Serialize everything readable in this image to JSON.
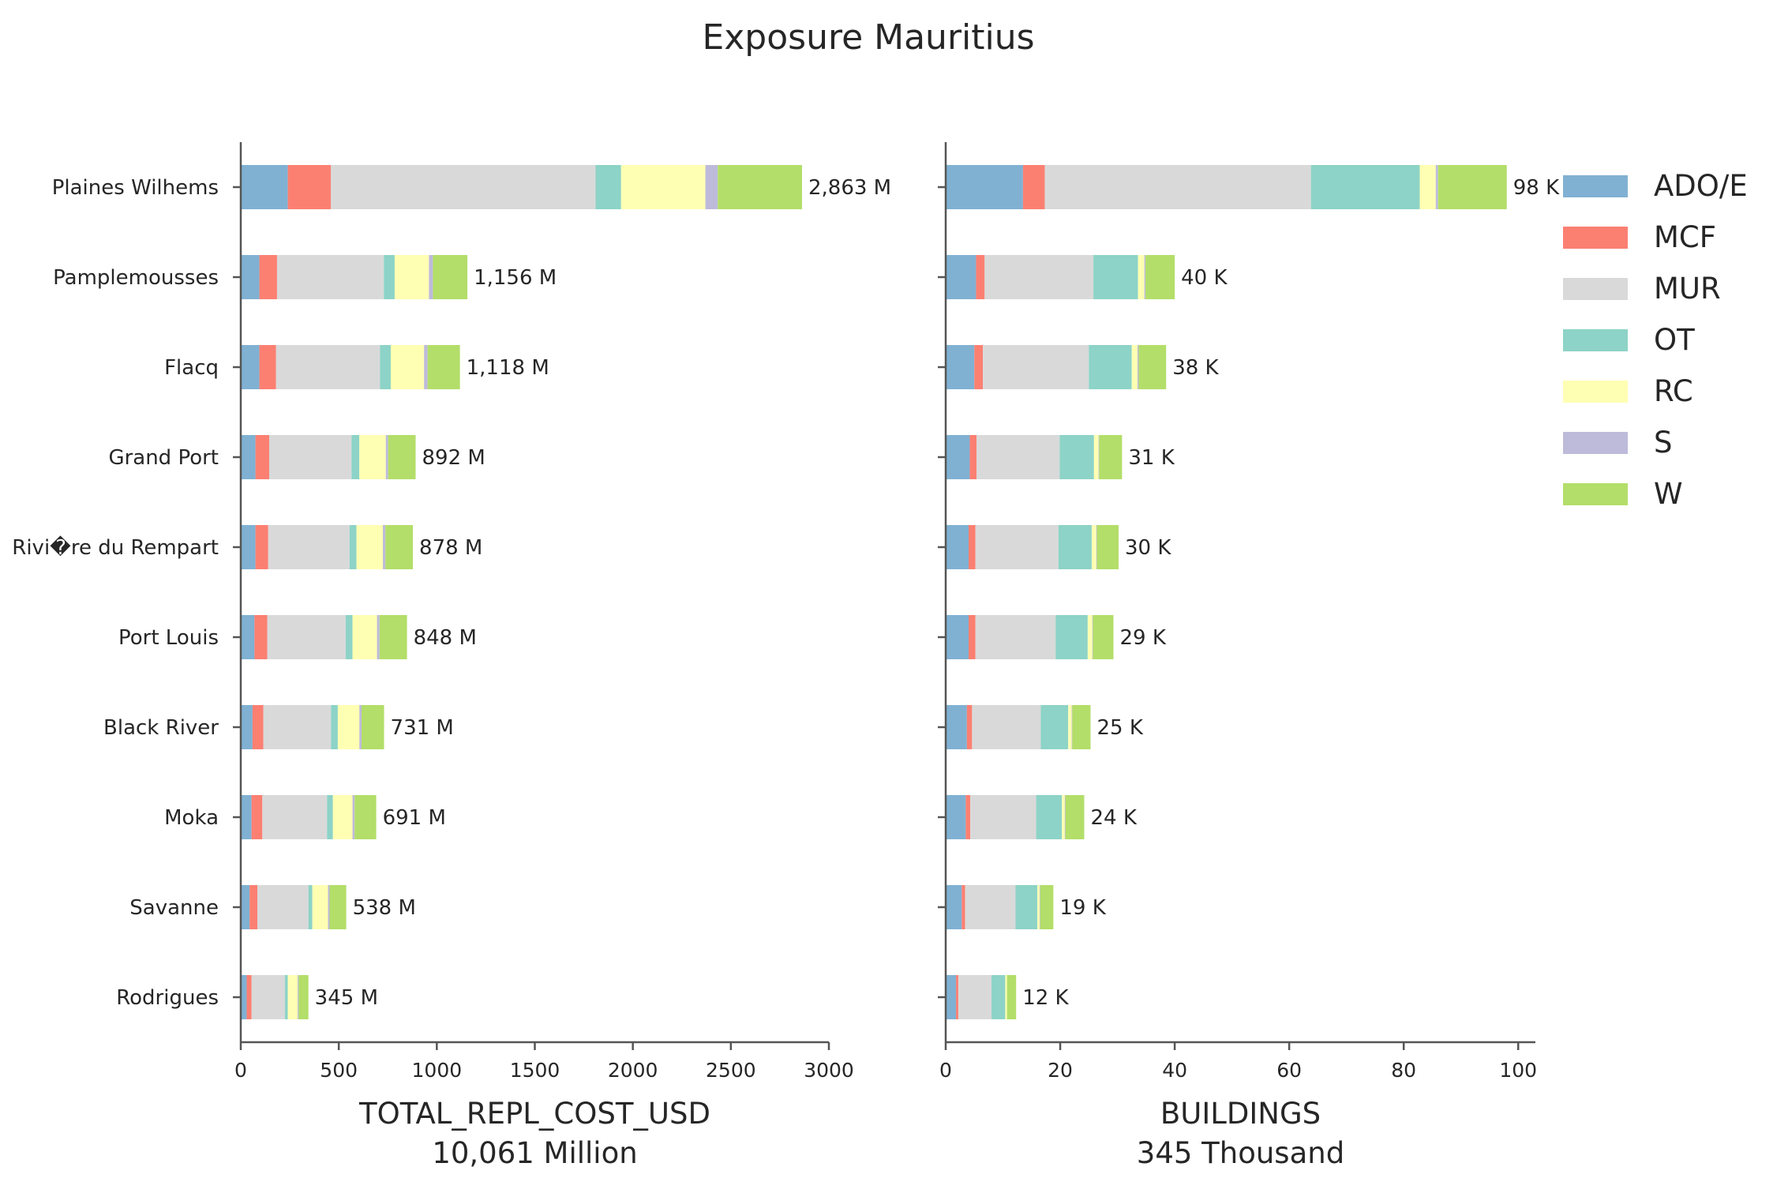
{
  "title": "Exposure Mauritius",
  "series_names": [
    "ADO/E",
    "MCF",
    "MUR",
    "OT",
    "RC",
    "S",
    "W"
  ],
  "colors": {
    "ADO/E": "#80b1d3",
    "MCF": "#fb8072",
    "MUR": "#d9d9d9",
    "OT": "#8dd3c7",
    "RC": "#ffffb3",
    "S": "#bebada",
    "W": "#b3de69",
    "axis": "#555555",
    "text": "#262626"
  },
  "legend": {
    "placement": "right",
    "items": [
      "ADO/E",
      "MCF",
      "MUR",
      "OT",
      "RC",
      "S",
      "W"
    ]
  },
  "chart_data": [
    {
      "type": "bar",
      "orientation": "horizontal",
      "stacked": true,
      "categories": [
        "Plaines Wilhems",
        "Pamplemousses",
        "Flacq",
        "Grand Port",
        "Rivi�re du Rempart",
        "Port Louis",
        "Black River",
        "Moka",
        "Savanne",
        "Rodrigues"
      ],
      "series": [
        {
          "name": "ADO/E",
          "values": [
            240,
            95,
            95,
            75,
            75,
            70,
            60,
            55,
            45,
            30
          ]
        },
        {
          "name": "MCF",
          "values": [
            220,
            90,
            85,
            70,
            65,
            65,
            55,
            55,
            40,
            25
          ]
        },
        {
          "name": "MUR",
          "values": [
            1350,
            545,
            530,
            420,
            415,
            400,
            345,
            330,
            260,
            170
          ]
        },
        {
          "name": "OT",
          "values": [
            130,
            55,
            55,
            40,
            35,
            35,
            35,
            30,
            20,
            15
          ]
        },
        {
          "name": "RC",
          "values": [
            430,
            175,
            170,
            135,
            135,
            125,
            110,
            100,
            80,
            50
          ]
        },
        {
          "name": "S",
          "values": [
            63,
            20,
            18,
            12,
            13,
            13,
            11,
            11,
            8,
            5
          ]
        },
        {
          "name": "W",
          "values": [
            430,
            176,
            165,
            140,
            140,
            140,
            115,
            110,
            85,
            50
          ]
        }
      ],
      "totals_text": [
        "2,863 M",
        "1,156 M",
        "1,118 M",
        "892 M",
        "878 M",
        "848 M",
        "731 M",
        "691 M",
        "538 M",
        "345 M"
      ],
      "xlim": [
        0,
        3000
      ],
      "xticks": [
        0,
        500,
        1000,
        1500,
        2000,
        2500,
        3000
      ],
      "xlabel": "TOTAL_REPL_COST_USD",
      "xlabel_sub": "10,061 Million"
    },
    {
      "type": "bar",
      "orientation": "horizontal",
      "stacked": true,
      "categories": [
        "Plaines Wilhems",
        "Pamplemousses",
        "Flacq",
        "Grand Port",
        "Rivi�re du Rempart",
        "Port Louis",
        "Black River",
        "Moka",
        "Savanne",
        "Rodrigues"
      ],
      "series": [
        {
          "name": "ADO/E",
          "values": [
            13.5,
            5.3,
            5.0,
            4.2,
            4.0,
            4.0,
            3.7,
            3.5,
            2.8,
            1.8
          ]
        },
        {
          "name": "MCF",
          "values": [
            3.8,
            1.5,
            1.5,
            1.2,
            1.2,
            1.2,
            0.9,
            0.8,
            0.6,
            0.4
          ]
        },
        {
          "name": "MUR",
          "values": [
            46.5,
            19.0,
            18.5,
            14.5,
            14.5,
            14.0,
            12.0,
            11.5,
            8.8,
            5.8
          ]
        },
        {
          "name": "OT",
          "values": [
            19.0,
            7.8,
            7.5,
            6.0,
            5.8,
            5.6,
            4.8,
            4.5,
            3.8,
            2.4
          ]
        },
        {
          "name": "RC",
          "values": [
            2.8,
            1.1,
            1.0,
            0.8,
            0.8,
            0.8,
            0.6,
            0.5,
            0.4,
            0.3
          ]
        },
        {
          "name": "S",
          "values": [
            0.4,
            0.2,
            0.2,
            0.1,
            0.1,
            0.1,
            0.1,
            0.1,
            0.1,
            0.0
          ]
        },
        {
          "name": "W",
          "values": [
            12.0,
            5.1,
            4.8,
            4.0,
            3.8,
            3.6,
            3.2,
            3.3,
            2.3,
            1.6
          ]
        }
      ],
      "totals_text": [
        "98 K",
        "40 K",
        "38 K",
        "31 K",
        "30 K",
        "29 K",
        "25 K",
        "24 K",
        "19 K",
        "12 K"
      ],
      "xlim": [
        0,
        103
      ],
      "xticks": [
        0,
        20,
        40,
        60,
        80,
        100
      ],
      "xlabel": "BUILDINGS",
      "xlabel_sub": "345 Thousand"
    }
  ]
}
